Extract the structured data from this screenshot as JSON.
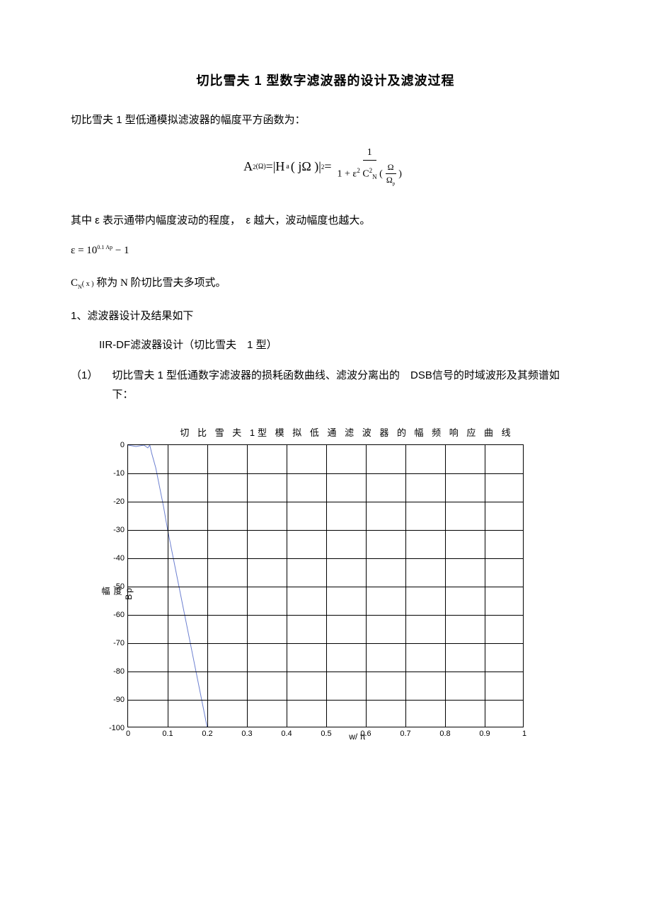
{
  "title": "切比雪夫 1 型数字滤波器的设计及滤波过程",
  "para1": "切比雪夫 1 型低通模拟滤波器的幅度平方函数为：",
  "formula": {
    "lhs_A": "A",
    "lhs_sup1": "2",
    "omega_arg": "(Ω)",
    "eq1": " = ",
    "abs_open": "|",
    "H": "H",
    "H_sub": "a",
    "H_arg": "( jΩ )",
    "abs_close": "|",
    "abs_sup": "2",
    "eq2": " = ",
    "num": "1",
    "den_prefix": "1 + ",
    "eps": "ε",
    "eps_sup": "2",
    "C": "C",
    "C_sub": "N",
    "C_sup": "2",
    "paren_open": "(",
    "inner_num": "Ω",
    "inner_den_O": "Ω",
    "inner_den_sub": "p",
    "paren_close": ")"
  },
  "para2": "其中 ε 表示通带内幅度波动的程度，　ε 越大，波动幅度也越大。",
  "eps_formula": {
    "eps": "ε",
    "eq": " = ",
    "base": "10",
    "exp": "0.1 Ap",
    "minus1": " − 1"
  },
  "cn_line": {
    "C": "C",
    "sub": "N",
    "arg": "( x )",
    "rest": " 称为 N 阶切比雪夫多项式。"
  },
  "sec1": "1、滤波器设计及结果如下",
  "sec1_sub": "IIR-DF滤波器设计（切比雪夫　1 型）",
  "item1_num": "（1）",
  "item1_text": "切比雪夫 1 型低通数字滤波器的损耗函数曲线、滤波分离出的　DSB信号的时域波形及其频谱如下：",
  "chart": {
    "title": "切 比 雪 夫 1型 模 拟 低 通 滤 波 器 的 幅 频 响 应 曲 线",
    "ylabel_top": "Bp",
    "ylabel_mid": "度",
    "ylabel_bot": "幅",
    "xlabel": "w/ π",
    "xlim": [
      0,
      1
    ],
    "ylim": [
      -100,
      0
    ],
    "xticks": [
      0,
      0.1,
      0.2,
      0.3,
      0.4,
      0.5,
      0.6,
      0.7,
      0.8,
      0.9,
      1
    ],
    "yticks": [
      0,
      -10,
      -20,
      -30,
      -40,
      -50,
      -60,
      -70,
      -80,
      -90,
      -100
    ],
    "line_color": "#6b7fd0",
    "line_width": 1,
    "grid_color": "#000000",
    "background": "#ffffff",
    "curve_points": [
      [
        0.0,
        0
      ],
      [
        0.02,
        -0.5
      ],
      [
        0.04,
        0
      ],
      [
        0.05,
        -1
      ],
      [
        0.055,
        0
      ],
      [
        0.06,
        -3
      ],
      [
        0.07,
        -8
      ],
      [
        0.08,
        -15
      ],
      [
        0.09,
        -22
      ],
      [
        0.1,
        -30
      ],
      [
        0.11,
        -37
      ],
      [
        0.12,
        -44
      ],
      [
        0.13,
        -51
      ],
      [
        0.14,
        -58
      ],
      [
        0.15,
        -65
      ],
      [
        0.16,
        -72
      ],
      [
        0.17,
        -79
      ],
      [
        0.18,
        -86
      ],
      [
        0.19,
        -93
      ],
      [
        0.2,
        -100
      ]
    ]
  }
}
